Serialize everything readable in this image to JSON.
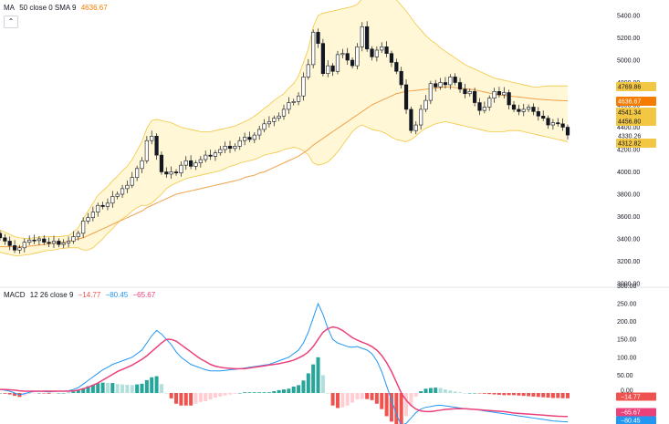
{
  "legend_main": {
    "name": "MA",
    "params": "50 close 0 SMA 9",
    "value": "4636.67",
    "value_color": "#f57c00"
  },
  "legend_macd": {
    "name": "MACD",
    "params": "12 26 close 9",
    "v1": "−14.77",
    "v2": "−80.45",
    "v3": "−65.67"
  },
  "collapse_icon": "caret-up-icon",
  "colors": {
    "up": "#26a69a",
    "down": "#ef5350",
    "candle": "#131722",
    "bb_fill": "#fff3c4",
    "bb_line": "#f2c744",
    "ma": "#f0a04a",
    "macd_line": "#2196f3",
    "signal_line": "#ec407a",
    "hist_up_strong": "#26a69a",
    "hist_up_weak": "#b2dfdb",
    "hist_down_strong": "#ef5350",
    "hist_down_weak": "#ffcdd2"
  },
  "chart_data": [
    {
      "type": "candlestick",
      "title": "",
      "ylim": [
        3000,
        5600
      ],
      "y_ticks": [
        "5400.00",
        "5200.00",
        "5000.00",
        "4800.00",
        "4600.00",
        "4400.00",
        "4200.00",
        "4000.00",
        "3800.00",
        "3600.00",
        "3400.00",
        "3200.00",
        "3000.00"
      ],
      "price_tags": [
        {
          "value": "4769.86",
          "color": "#f2c744",
          "text": "#131722"
        },
        {
          "value": "4636.67",
          "color": "#f57c00",
          "text": "#ffffff"
        },
        {
          "value": "4541.34",
          "color": "#f2c744",
          "text": "#131722"
        },
        {
          "value": "4456.80",
          "color": "#f2c744",
          "text": "#131722"
        },
        {
          "value": "4330.26",
          "color": "#ffffff",
          "text": "#131722"
        },
        {
          "value": "4312.82",
          "color": "#f2c744",
          "text": "#131722"
        }
      ],
      "close": [
        3410,
        3380,
        3340,
        3300,
        3320,
        3370,
        3390,
        3385,
        3400,
        3370,
        3360,
        3380,
        3350,
        3365,
        3380,
        3420,
        3450,
        3560,
        3590,
        3640,
        3700,
        3690,
        3720,
        3780,
        3800,
        3850,
        3880,
        3950,
        4030,
        4100,
        4280,
        4320,
        4150,
        4000,
        3980,
        4000,
        3990,
        4060,
        4100,
        4050,
        4080,
        4110,
        4150,
        4140,
        4170,
        4200,
        4230,
        4210,
        4230,
        4280,
        4310,
        4290,
        4330,
        4380,
        4430,
        4450,
        4480,
        4500,
        4560,
        4620,
        4630,
        4680,
        4850,
        4960,
        5250,
        5150,
        4880,
        4950,
        4900,
        5050,
        5060,
        5000,
        4950,
        5120,
        5300,
        5100,
        5030,
        5090,
        5120,
        5060,
        4980,
        4900,
        4780,
        4560,
        4370,
        4420,
        4560,
        4640,
        4790,
        4760,
        4800,
        4780,
        4850,
        4800,
        4740,
        4700,
        4720,
        4620,
        4550,
        4580,
        4660,
        4720,
        4690,
        4710,
        4600,
        4560,
        4540,
        4560,
        4580,
        4540,
        4500,
        4480,
        4420,
        4440,
        4430,
        4400,
        4330
      ],
      "open": [
        3450,
        3410,
        3380,
        3340,
        3300,
        3320,
        3370,
        3390,
        3385,
        3400,
        3370,
        3360,
        3380,
        3350,
        3365,
        3380,
        3420,
        3450,
        3560,
        3590,
        3640,
        3700,
        3690,
        3720,
        3780,
        3800,
        3850,
        3880,
        3950,
        4030,
        4100,
        4280,
        4320,
        4150,
        4000,
        3980,
        4000,
        3990,
        4060,
        4100,
        4050,
        4080,
        4110,
        4150,
        4140,
        4170,
        4200,
        4230,
        4210,
        4230,
        4280,
        4310,
        4290,
        4330,
        4380,
        4430,
        4450,
        4480,
        4500,
        4560,
        4620,
        4630,
        4680,
        4850,
        4960,
        5250,
        5150,
        4880,
        4950,
        4900,
        5050,
        5060,
        5000,
        4950,
        5120,
        5300,
        5100,
        5030,
        5090,
        5120,
        5060,
        4980,
        4900,
        4780,
        4560,
        4370,
        4420,
        4560,
        4640,
        4790,
        4760,
        4800,
        4780,
        4850,
        4800,
        4740,
        4700,
        4720,
        4620,
        4550,
        4580,
        4660,
        4720,
        4690,
        4710,
        4600,
        4560,
        4540,
        4560,
        4580,
        4540,
        4500,
        4480,
        4420,
        4440,
        4430,
        4400
      ],
      "bb_upper": [
        3480,
        3460,
        3440,
        3420,
        3410,
        3405,
        3405,
        3410,
        3415,
        3420,
        3420,
        3420,
        3420,
        3425,
        3430,
        3460,
        3500,
        3580,
        3650,
        3720,
        3790,
        3830,
        3870,
        3920,
        3960,
        4010,
        4050,
        4110,
        4190,
        4270,
        4390,
        4460,
        4470,
        4460,
        4450,
        4440,
        4420,
        4400,
        4390,
        4380,
        4370,
        4360,
        4360,
        4360,
        4370,
        4380,
        4390,
        4400,
        4410,
        4430,
        4450,
        4470,
        4500,
        4530,
        4570,
        4600,
        4640,
        4670,
        4700,
        4750,
        4790,
        4860,
        4980,
        5100,
        5300,
        5400,
        5420,
        5430,
        5440,
        5450,
        5460,
        5470,
        5480,
        5500,
        5550,
        5580,
        5600,
        5610,
        5600,
        5590,
        5570,
        5540,
        5490,
        5440,
        5380,
        5320,
        5270,
        5220,
        5180,
        5150,
        5110,
        5080,
        5050,
        5020,
        4990,
        4960,
        4940,
        4920,
        4900,
        4880,
        4860,
        4840,
        4830,
        4820,
        4810,
        4800,
        4790,
        4780,
        4770,
        4760,
        4760,
        4765,
        4770,
        4770,
        4770,
        4770,
        4770
      ],
      "bb_lower": [
        3280,
        3270,
        3260,
        3250,
        3250,
        3255,
        3260,
        3270,
        3280,
        3290,
        3300,
        3300,
        3310,
        3315,
        3320,
        3320,
        3320,
        3300,
        3300,
        3320,
        3360,
        3400,
        3450,
        3490,
        3540,
        3580,
        3610,
        3650,
        3680,
        3700,
        3700,
        3720,
        3760,
        3800,
        3850,
        3880,
        3900,
        3920,
        3940,
        3950,
        3960,
        3970,
        3980,
        3990,
        4000,
        4010,
        4030,
        4050,
        4060,
        4080,
        4090,
        4100,
        4110,
        4130,
        4150,
        4160,
        4170,
        4180,
        4200,
        4210,
        4220,
        4210,
        4190,
        4150,
        4080,
        4060,
        4070,
        4090,
        4130,
        4180,
        4240,
        4300,
        4360,
        4400,
        4420,
        4400,
        4380,
        4370,
        4360,
        4340,
        4310,
        4290,
        4280,
        4270,
        4290,
        4320,
        4360,
        4390,
        4410,
        4430,
        4440,
        4450,
        4440,
        4430,
        4420,
        4410,
        4400,
        4390,
        4380,
        4370,
        4360,
        4360,
        4360,
        4360,
        4370,
        4370,
        4370,
        4360,
        4350,
        4340,
        4330,
        4320,
        4310,
        4300,
        4290,
        4280,
        4270
      ],
      "sma": [
        3330,
        3330,
        3330,
        3330,
        3330,
        3330,
        3335,
        3340,
        3345,
        3350,
        3355,
        3360,
        3365,
        3370,
        3380,
        3390,
        3400,
        3410,
        3430,
        3450,
        3470,
        3490,
        3510,
        3530,
        3550,
        3570,
        3590,
        3610,
        3630,
        3650,
        3680,
        3700,
        3720,
        3740,
        3760,
        3780,
        3800,
        3810,
        3820,
        3830,
        3840,
        3850,
        3860,
        3870,
        3880,
        3890,
        3900,
        3910,
        3920,
        3930,
        3950,
        3960,
        3970,
        3990,
        4000,
        4020,
        4040,
        4060,
        4080,
        4100,
        4120,
        4140,
        4170,
        4200,
        4240,
        4270,
        4300,
        4330,
        4360,
        4390,
        4420,
        4450,
        4480,
        4510,
        4540,
        4570,
        4600,
        4620,
        4640,
        4660,
        4680,
        4700,
        4710,
        4720,
        4725,
        4730,
        4735,
        4740,
        4745,
        4750,
        4755,
        4760,
        4760,
        4755,
        4750,
        4745,
        4740,
        4735,
        4725,
        4715,
        4705,
        4700,
        4690,
        4685,
        4680,
        4675,
        4670,
        4665,
        4660,
        4655,
        4650,
        4648,
        4645,
        4642,
        4640,
        4638,
        4637
      ]
    },
    {
      "type": "macd",
      "ylim": [
        -100,
        300
      ],
      "y_ticks": [
        "300.00",
        "250.00",
        "200.00",
        "150.00",
        "100.00",
        "50.00",
        "0.00",
        "-50.00"
      ],
      "value_tags": [
        {
          "value": "0.00",
          "color": "#ffffff",
          "text": "#131722"
        },
        {
          "value": "−14.77",
          "color": "#ef5350",
          "text": "#ffffff"
        },
        {
          "value": "−65.67",
          "color": "#ec407a",
          "text": "#ffffff"
        },
        {
          "value": "−80.45",
          "color": "#2196f3",
          "text": "#ffffff"
        }
      ],
      "macd": [
        10,
        8,
        5,
        0,
        -5,
        -2,
        2,
        4,
        5,
        4,
        3,
        4,
        5,
        5,
        6,
        10,
        15,
        25,
        35,
        45,
        55,
        65,
        72,
        80,
        85,
        90,
        95,
        100,
        110,
        120,
        140,
        160,
        175,
        165,
        150,
        135,
        115,
        100,
        90,
        80,
        75,
        70,
        65,
        62,
        62,
        62,
        63,
        65,
        66,
        68,
        70,
        72,
        74,
        76,
        78,
        80,
        85,
        90,
        95,
        100,
        110,
        120,
        140,
        170,
        210,
        250,
        220,
        180,
        150,
        140,
        135,
        130,
        128,
        130,
        125,
        120,
        110,
        90,
        60,
        20,
        -20,
        -60,
        -90,
        -85,
        -70,
        -55,
        -45,
        -40,
        -38,
        -35,
        -34,
        -36,
        -38,
        -40,
        -42,
        -44,
        -45,
        -46,
        -48,
        -50,
        -52,
        -54,
        -56,
        -58,
        -60,
        -62,
        -64,
        -66,
        -68,
        -70,
        -72,
        -74,
        -76,
        -78,
        -79,
        -80,
        -80.45
      ],
      "signal": [
        10,
        10,
        9,
        8,
        6,
        5,
        5,
        5,
        5,
        5,
        5,
        5,
        5,
        5,
        5,
        6,
        8,
        12,
        16,
        22,
        28,
        36,
        44,
        52,
        60,
        66,
        72,
        78,
        86,
        94,
        104,
        116,
        128,
        140,
        150,
        150,
        145,
        135,
        125,
        115,
        105,
        95,
        88,
        80,
        75,
        72,
        70,
        69,
        68,
        68,
        68,
        70,
        72,
        74,
        76,
        78,
        80,
        82,
        85,
        88,
        92,
        98,
        105,
        115,
        130,
        150,
        170,
        180,
        185,
        182,
        175,
        165,
        155,
        148,
        142,
        137,
        130,
        120,
        105,
        85,
        60,
        30,
        0,
        -20,
        -35,
        -45,
        -50,
        -52,
        -52,
        -50,
        -48,
        -46,
        -45,
        -44,
        -44,
        -44,
        -45,
        -46,
        -47,
        -48,
        -49,
        -50,
        -51,
        -52,
        -54,
        -56,
        -57,
        -58,
        -59,
        -60,
        -61,
        -62,
        -63,
        -64,
        -65,
        -65.5,
        -65.67
      ]
    }
  ]
}
